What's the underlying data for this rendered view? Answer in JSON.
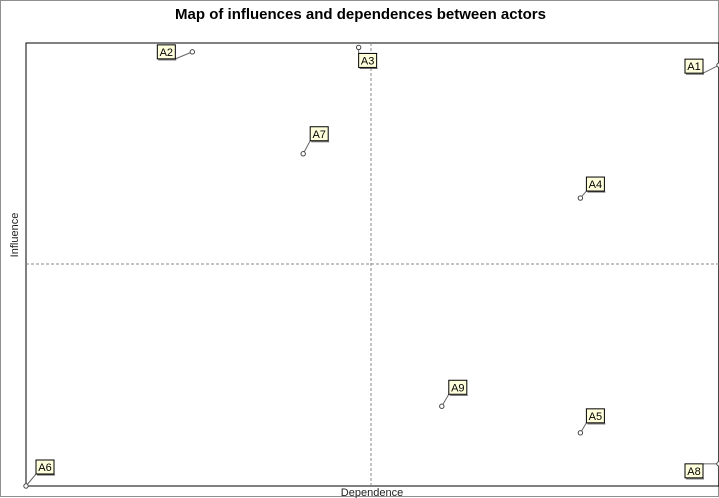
{
  "chart_data": {
    "type": "scatter",
    "title": "Map of influences and dependences between actors",
    "xlabel": "Dependence",
    "ylabel": "Influence",
    "xlim": [
      0,
      100
    ],
    "ylim": [
      0,
      100
    ],
    "grid": false,
    "quadrant_lines": true,
    "points": [
      {
        "label": "A1",
        "x": 100,
        "y": 95
      },
      {
        "label": "A2",
        "x": 24,
        "y": 98
      },
      {
        "label": "A3",
        "x": 48,
        "y": 99
      },
      {
        "label": "A4",
        "x": 80,
        "y": 65
      },
      {
        "label": "A5",
        "x": 80,
        "y": 12
      },
      {
        "label": "A6",
        "x": 0,
        "y": 0
      },
      {
        "label": "A7",
        "x": 40,
        "y": 75
      },
      {
        "label": "A8",
        "x": 100,
        "y": 5
      },
      {
        "label": "A9",
        "x": 60,
        "y": 18
      }
    ]
  },
  "colors": {
    "frame": "#000000",
    "quadrant_line": "#8a8a8a",
    "label_fill": "#ffffdc",
    "label_border": "#000000",
    "marker": "#444444",
    "leader": "#666666"
  }
}
